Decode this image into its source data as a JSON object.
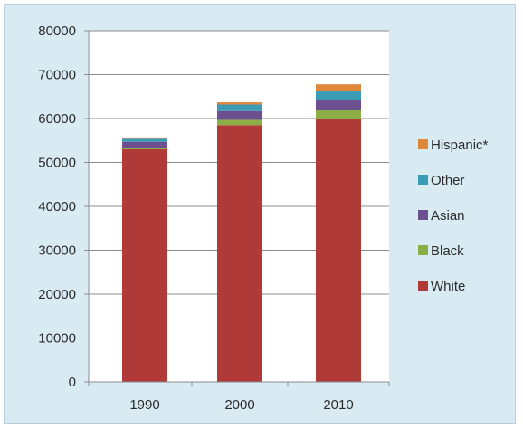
{
  "chart_data": {
    "type": "bar",
    "stacked": true,
    "categories": [
      "1990",
      "2000",
      "2010"
    ],
    "series": [
      {
        "name": "White",
        "values": [
          53000,
          58500,
          59800
        ],
        "color": "#b03a37"
      },
      {
        "name": "Black",
        "values": [
          300,
          1200,
          2200
        ],
        "color": "#8bae47"
      },
      {
        "name": "Asian",
        "values": [
          1400,
          2000,
          2200
        ],
        "color": "#6b4f8f"
      },
      {
        "name": "Other",
        "values": [
          700,
          1500,
          2000
        ],
        "color": "#3c9bb5"
      },
      {
        "name": "Hispanic*",
        "values": [
          300,
          500,
          1600
        ],
        "color": "#e0873a"
      }
    ],
    "ylim": [
      0,
      80000
    ],
    "yticks": [
      "0",
      "10000",
      "20000",
      "30000",
      "40000",
      "50000",
      "60000",
      "70000",
      "80000"
    ],
    "grid": true,
    "legend": "right",
    "plot_background": "#ffffff",
    "frame_background": "#d8eaf2"
  }
}
